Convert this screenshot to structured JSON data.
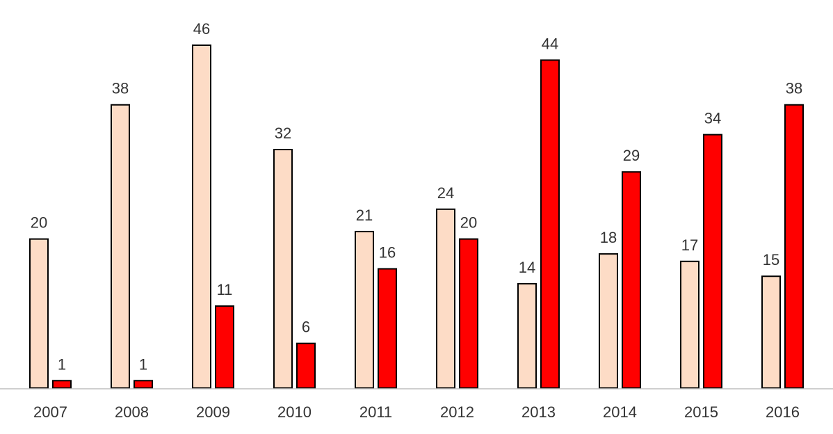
{
  "chart_data": {
    "type": "bar",
    "categories": [
      "2007",
      "2008",
      "2009",
      "2010",
      "2011",
      "2012",
      "2013",
      "2014",
      "2015",
      "2016"
    ],
    "series": [
      {
        "values": [
          20,
          38,
          46,
          32,
          21,
          24,
          14,
          18,
          17,
          15
        ],
        "color": "#FDDCC6"
      },
      {
        "values": [
          1,
          1,
          11,
          6,
          16,
          20,
          44,
          29,
          34,
          38
        ],
        "color": "#FF0000"
      }
    ],
    "title": "",
    "xlabel": "",
    "ylabel": "",
    "ylim": [
      0,
      46
    ],
    "grid": false,
    "legend": "none",
    "data_labels": true
  }
}
